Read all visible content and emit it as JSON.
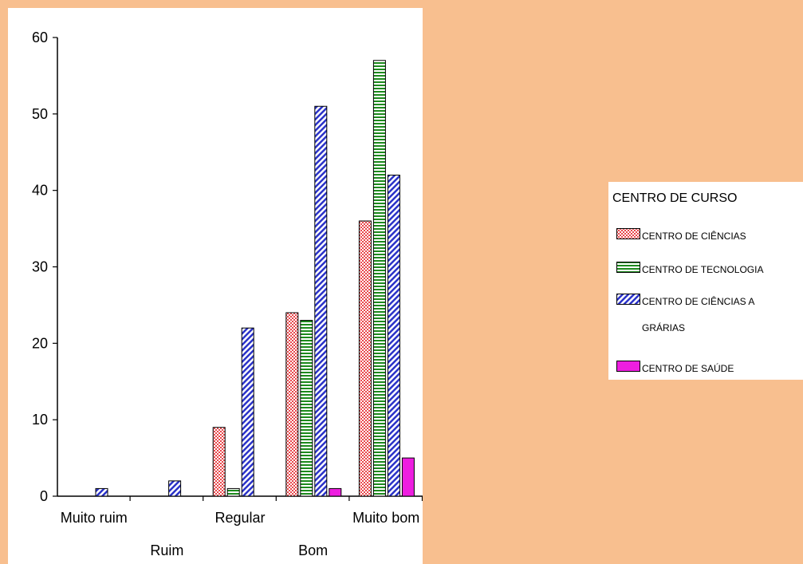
{
  "chart_data": {
    "type": "bar",
    "categories": [
      "Muito ruim",
      "Ruim",
      "Regular",
      "Bom",
      "Muito bom"
    ],
    "series": [
      {
        "name": "CENTRO DE CIÊNCIAS",
        "values": [
          0,
          0,
          9,
          24,
          36
        ],
        "color": "#e8474b",
        "pattern": "checker"
      },
      {
        "name": "CENTRO DE TECNOLOGIA",
        "values": [
          0,
          0,
          1,
          23,
          57
        ],
        "color": "#1d8a1d",
        "pattern": "horizontal"
      },
      {
        "name": "CENTRO DE CIÊNCIAS A GRÁRIAS",
        "values": [
          1,
          2,
          22,
          51,
          42
        ],
        "color": "#2a32c8",
        "pattern": "diagonal"
      },
      {
        "name": "CENTRO DE SAÚDE",
        "values": [
          0,
          0,
          0,
          1,
          5
        ],
        "color": "#ee1ee0",
        "pattern": "solid"
      }
    ],
    "yticks": [
      0,
      10,
      20,
      30,
      40,
      50,
      60
    ],
    "ylim": [
      0,
      60
    ],
    "legend": {
      "title": "CENTRO DE CURSO",
      "items": [
        "CENTRO DE CIÊNCIAS",
        "CENTRO DE TECNOLOGIA",
        "CENTRO DE CIÊNCIAS A",
        "GRÁRIAS",
        "CENTRO DE SAÚDE"
      ],
      "placement": "right"
    },
    "grid": false
  }
}
